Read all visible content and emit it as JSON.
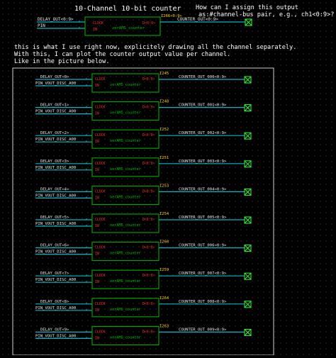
{
  "colors": {
    "background": "#000000",
    "wire": "#00b8c8",
    "block": "#00a000",
    "pin_label": "#ff3030",
    "instance_label": "#ffd700",
    "net_label": "#e8e8e8",
    "annotation": "#ffffff",
    "frame": "#d0d0d0",
    "terminal": "#30ff30"
  },
  "top": {
    "title": "10-Channel 10-bit counter",
    "input_1": "DELAY_OUT<0:9>",
    "input_2": "PIN",
    "instance": "I266<0:9>",
    "output_net": "COUNTER_OUT<0:9>",
    "question_line1": "How can I assign this output",
    "question_line2": "as:#channel-bus pair, e.g., ch1<0:9>?"
  },
  "annotation": {
    "line1": "this is what I use right now, explicitely drawing all the channel separately.",
    "line2": "With this, I can plot the counter output value per channel.",
    "line3": "Like in the picture below."
  },
  "block": {
    "name": "verAMS_counter",
    "pin_clock": "CLOCK",
    "pin_in": "IN",
    "pin_out": "D<0:9>"
  },
  "channels": [
    {
      "delay": "DELAY_OUT<0>",
      "pin": "PIN_VOUT_DISC_A00",
      "instance": "I245",
      "output": "COUNTER_OUT_000<0:9>"
    },
    {
      "delay": "DELAY_OUT<1>",
      "pin": "PIN_VOUT_DISC_A00",
      "instance": "I248",
      "output": "COUNTER_OUT_001<0:9>"
    },
    {
      "delay": "DELAY_OUT<2>",
      "pin": "PIN_VOUT_DISC_A00",
      "instance": "I252",
      "output": "COUNTER_OUT_002<0:9>"
    },
    {
      "delay": "DELAY_OUT<3>",
      "pin": "PIN_VOUT_DISC_A00",
      "instance": "I251",
      "output": "COUNTER_OUT_003<0:9>"
    },
    {
      "delay": "DELAY_OUT<4>",
      "pin": "PIN_VOUT_DISC_A00",
      "instance": "I253",
      "output": "COUNTER_OUT_004<0:9>"
    },
    {
      "delay": "DELAY_OUT<5>",
      "pin": "PIN_VOUT_DISC_A00",
      "instance": "I254",
      "output": "COUNTER_OUT_005<0:9>"
    },
    {
      "delay": "DELAY_OUT<6>",
      "pin": "PIN_VOUT_DISC_A00",
      "instance": "I260",
      "output": "COUNTER_OUT_006<0:9>"
    },
    {
      "delay": "DELAY_OUT<7>",
      "pin": "PIN_VOUT_DISC_A00",
      "instance": "I259",
      "output": "COUNTER_OUT_007<0:9>"
    },
    {
      "delay": "DELAY_OUT<8>",
      "pin": "PIN_VOUT_DISC_A00",
      "instance": "I264",
      "output": "COUNTER_OUT_008<0:9>"
    },
    {
      "delay": "DELAY_OUT<9>",
      "pin": "PIN_VOUT_DISC_A00",
      "instance": "I263",
      "output": "COUNTER_OUT_009<0:9>"
    }
  ]
}
